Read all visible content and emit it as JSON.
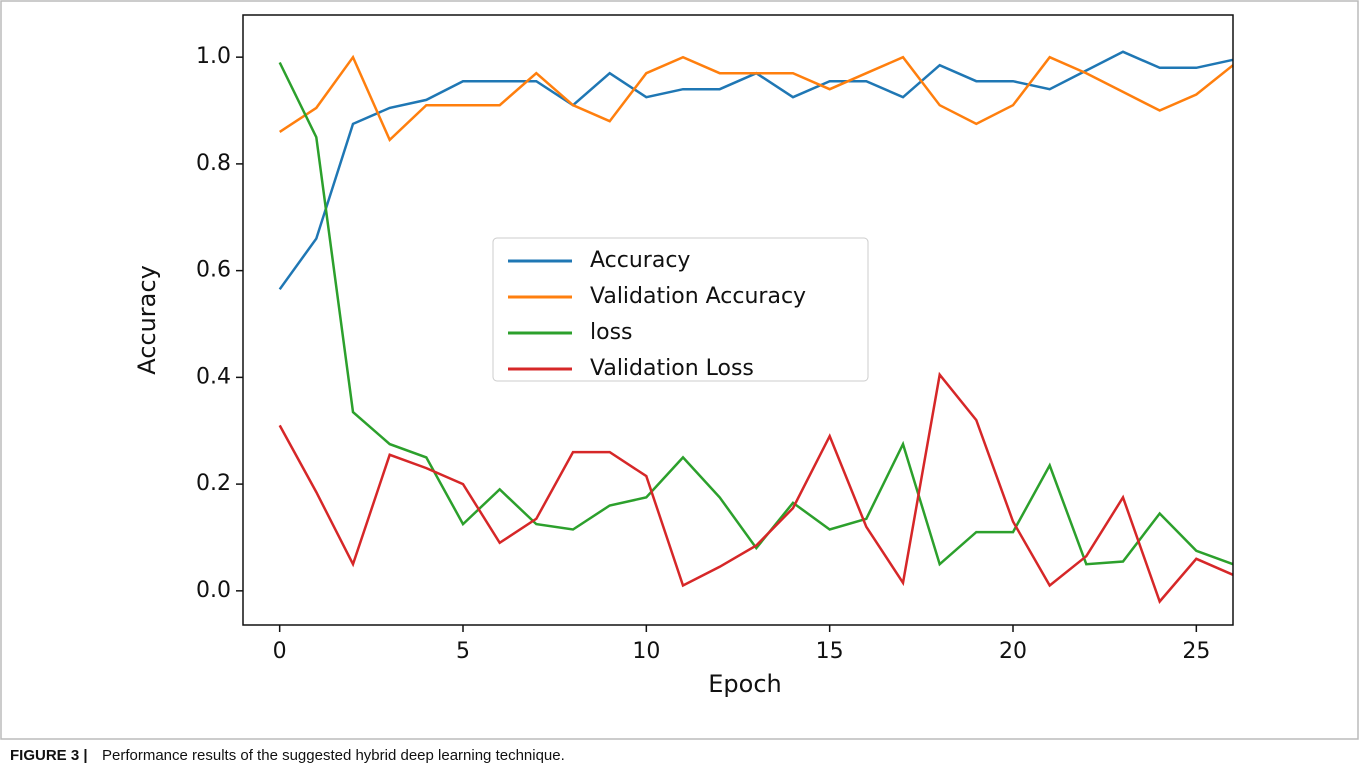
{
  "chart_data": {
    "type": "line",
    "xlabel": "Epoch",
    "ylabel": "Accuracy",
    "x": [
      0,
      1,
      2,
      3,
      4,
      5,
      6,
      7,
      8,
      9,
      10,
      11,
      12,
      13,
      14,
      15,
      16,
      17,
      18,
      19,
      20,
      21,
      22,
      23,
      24,
      25,
      26
    ],
    "series": [
      {
        "name": "Accuracy",
        "color": "#1f77b4",
        "values": [
          0.565,
          0.66,
          0.875,
          0.905,
          0.92,
          0.955,
          0.955,
          0.955,
          0.91,
          0.97,
          0.925,
          0.94,
          0.94,
          0.97,
          0.925,
          0.955,
          0.955,
          0.925,
          0.985,
          0.955,
          0.955,
          0.94,
          0.975,
          1.01,
          0.98,
          0.98,
          0.995
        ]
      },
      {
        "name": "Validation Accuracy",
        "color": "#ff7f0e",
        "values": [
          0.86,
          0.905,
          1.0,
          0.845,
          0.91,
          0.91,
          0.91,
          0.97,
          0.91,
          0.88,
          0.97,
          1.0,
          0.97,
          0.97,
          0.97,
          0.94,
          0.97,
          1.0,
          0.91,
          0.875,
          0.91,
          1.0,
          0.97,
          0.935,
          0.9,
          0.93,
          0.985
        ]
      },
      {
        "name": "loss",
        "color": "#2ca02c",
        "values": [
          0.99,
          0.85,
          0.335,
          0.275,
          0.25,
          0.125,
          0.19,
          0.125,
          0.115,
          0.16,
          0.175,
          0.25,
          0.175,
          0.08,
          0.165,
          0.115,
          0.135,
          0.275,
          0.05,
          0.11,
          0.11,
          0.235,
          0.05,
          0.055,
          0.145,
          0.075,
          0.05
        ]
      },
      {
        "name": "Validation Loss",
        "color": "#d62728",
        "values": [
          0.31,
          0.185,
          0.05,
          0.255,
          0.23,
          0.2,
          0.09,
          0.135,
          0.26,
          0.26,
          0.215,
          0.01,
          0.045,
          0.085,
          0.155,
          0.29,
          0.12,
          0.015,
          0.405,
          0.32,
          0.13,
          0.01,
          0.065,
          0.175,
          -0.02,
          0.06,
          0.03
        ]
      }
    ],
    "xlim": [
      -1,
      26
    ],
    "xticks": [
      0,
      5,
      10,
      15,
      20,
      25
    ],
    "ylim": [
      -0.064,
      1.079
    ],
    "yticks": [
      {
        "value": 0,
        "label": "0.0"
      },
      {
        "value": 0.2,
        "label": "0.2"
      },
      {
        "value": 0.4,
        "label": "0.4"
      },
      {
        "value": 0.6,
        "label": "0.6"
      },
      {
        "value": 0.8,
        "label": "0.8"
      },
      {
        "value": 1,
        "label": "1.0"
      }
    ],
    "legend": "center"
  },
  "caption_label": "FIGURE 3 |",
  "caption": "Performance results of the suggested hybrid deep learning technique."
}
